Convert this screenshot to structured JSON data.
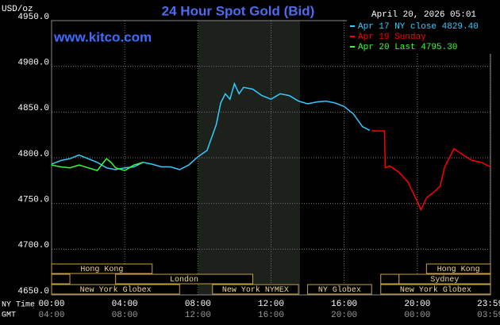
{
  "chart_data": {
    "type": "line",
    "title": "24 Hour Spot Gold (Bid)",
    "watermark": "www.kitco.com",
    "y_unit": "USD/oz",
    "timestamp": "April 20, 2026 05:01",
    "x_row_labels": [
      "NY Time",
      "GMT"
    ],
    "background": "#000000",
    "grid": true,
    "legend": "upper right",
    "xlim": [
      0,
      24
    ],
    "ylim": [
      4650,
      4950
    ],
    "xticks": [
      {
        "value": 0,
        "label": "00:00"
      },
      {
        "value": 4,
        "label": "04:00"
      },
      {
        "value": 8,
        "label": "08:00"
      },
      {
        "value": 12,
        "label": "12:00"
      },
      {
        "value": 16,
        "label": "16:00"
      },
      {
        "value": 20,
        "label": "20:00"
      },
      {
        "value": 23.983,
        "label": "23:59"
      }
    ],
    "xticks_gmt": [
      {
        "value": 0,
        "label": "04:00"
      },
      {
        "value": 4,
        "label": "08:00"
      },
      {
        "value": 8,
        "label": "12:00"
      },
      {
        "value": 12,
        "label": "16:00"
      },
      {
        "value": 16,
        "label": "20:00"
      },
      {
        "value": 20,
        "label": "00:00"
      },
      {
        "value": 23.983,
        "label": "03:59"
      }
    ],
    "yticks": [
      {
        "value": 4650,
        "label": "4650.0"
      },
      {
        "value": 4700,
        "label": "4700.0"
      },
      {
        "value": 4750,
        "label": "4750.0"
      },
      {
        "value": 4800,
        "label": "4800.0"
      },
      {
        "value": 4850,
        "label": "4850.0"
      },
      {
        "value": 4900,
        "label": "4900.0"
      },
      {
        "value": 4950,
        "label": "4950.0"
      }
    ],
    "sessions": [
      "Hong Kong",
      "London",
      "New York Globex",
      "New York NYMEX",
      "NY Globex",
      "Hong Kong",
      "Sydney",
      "New York Globex"
    ],
    "series": [
      {
        "name": "Apr 17 NY close 4829.40",
        "color": "#33ccff",
        "x": [
          0,
          0.5,
          1,
          1.5,
          2,
          2.5,
          3,
          3.5,
          4,
          4.5,
          5,
          5.5,
          6,
          6.5,
          7,
          7.5,
          8,
          8.5,
          9,
          9.25,
          9.5,
          9.75,
          10,
          10.25,
          10.5,
          11,
          11.5,
          12,
          12.5,
          13,
          13.5,
          14,
          14.5,
          15,
          15.5,
          16,
          16.5,
          17,
          17.4
        ],
        "values": [
          4793,
          4797,
          4799,
          4803,
          4799,
          4795,
          4789,
          4787,
          4789,
          4790,
          4795,
          4793,
          4790,
          4790,
          4787,
          4792,
          4801,
          4808,
          4836,
          4860,
          4870,
          4864,
          4881,
          4870,
          4877,
          4875,
          4868,
          4864,
          4870,
          4868,
          4862,
          4859,
          4861,
          4862,
          4860,
          4856,
          4848,
          4834,
          4830
        ]
      },
      {
        "name": "Apr 19 Sunday",
        "color": "#ff0000",
        "x": [
          17.5,
          18.2,
          18.25,
          18.5,
          19,
          19.5,
          20,
          20.2,
          20.5,
          21,
          21.25,
          21.5,
          22,
          22.5,
          23,
          23.5,
          24
        ],
        "values": [
          4829.4,
          4829.4,
          4789,
          4791,
          4784,
          4773,
          4752,
          4743,
          4756,
          4764,
          4769,
          4790,
          4810,
          4803,
          4797,
          4795,
          4790
        ]
      },
      {
        "name": "Apr 20 Last 4795.30",
        "color": "#33ff33",
        "x": [
          0,
          0.5,
          1,
          1.5,
          2,
          2.5,
          3,
          3.25,
          3.5,
          4,
          4.5,
          5
        ],
        "values": [
          4792,
          4790,
          4789,
          4792,
          4789,
          4786,
          4799,
          4795,
          4789,
          4786,
          4792,
          4795
        ]
      }
    ]
  }
}
